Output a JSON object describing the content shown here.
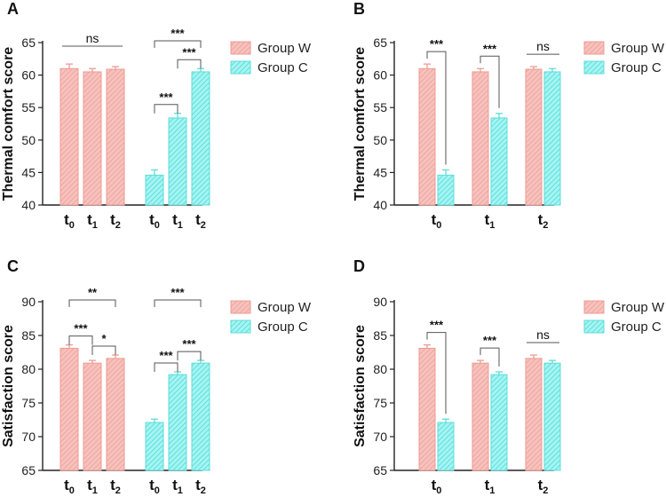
{
  "chart_data": [
    {
      "panel": "A",
      "type": "bar",
      "layout": "by-group",
      "ylabel": "Thermal comfort score",
      "ylim": [
        40,
        65
      ],
      "yticks": [
        40,
        45,
        50,
        55,
        60,
        65
      ],
      "categories": [
        "t0",
        "t1",
        "t2"
      ],
      "series": [
        {
          "name": "Group W",
          "values": [
            61.0,
            60.5,
            60.9
          ],
          "errors": [
            0.7,
            0.5,
            0.4
          ]
        },
        {
          "name": "Group C",
          "values": [
            44.6,
            53.4,
            60.5
          ],
          "errors": [
            0.8,
            0.7,
            0.5
          ]
        }
      ],
      "significance": [
        {
          "series": 0,
          "from": 0,
          "to": 2,
          "label": "ns"
        },
        {
          "series": 1,
          "from": 0,
          "to": 1,
          "label": "***"
        },
        {
          "series": 1,
          "from": 1,
          "to": 2,
          "label": "***"
        },
        {
          "series": 1,
          "from": 0,
          "to": 2,
          "label": "***"
        }
      ],
      "legend": "right"
    },
    {
      "panel": "B",
      "type": "bar",
      "layout": "by-time",
      "ylabel": "Thermal comfort score",
      "ylim": [
        40,
        65
      ],
      "yticks": [
        40,
        45,
        50,
        55,
        60,
        65
      ],
      "categories": [
        "t0",
        "t1",
        "t2"
      ],
      "series": [
        {
          "name": "Group W",
          "values": [
            61.0,
            60.5,
            60.9
          ],
          "errors": [
            0.7,
            0.5,
            0.4
          ]
        },
        {
          "name": "Group C",
          "values": [
            44.6,
            53.4,
            60.5
          ],
          "errors": [
            0.8,
            0.7,
            0.5
          ]
        }
      ],
      "significance": [
        {
          "category": 0,
          "label": "***"
        },
        {
          "category": 1,
          "label": "***"
        },
        {
          "category": 2,
          "label": "ns"
        }
      ],
      "legend": "right"
    },
    {
      "panel": "C",
      "type": "bar",
      "layout": "by-group",
      "ylabel": "Satisfaction score",
      "ylim": [
        65,
        90
      ],
      "yticks": [
        65,
        70,
        75,
        80,
        85,
        90
      ],
      "categories": [
        "t0",
        "t1",
        "t2"
      ],
      "series": [
        {
          "name": "Group W",
          "values": [
            83.1,
            80.9,
            81.6
          ],
          "errors": [
            0.5,
            0.4,
            0.5
          ]
        },
        {
          "name": "Group C",
          "values": [
            72.1,
            79.2,
            80.9
          ],
          "errors": [
            0.5,
            0.4,
            0.4
          ]
        }
      ],
      "significance": [
        {
          "series": 0,
          "from": 0,
          "to": 1,
          "label": "***"
        },
        {
          "series": 0,
          "from": 1,
          "to": 2,
          "label": "*"
        },
        {
          "series": 0,
          "from": 0,
          "to": 2,
          "label": "**"
        },
        {
          "series": 1,
          "from": 0,
          "to": 1,
          "label": "***"
        },
        {
          "series": 1,
          "from": 1,
          "to": 2,
          "label": "***"
        },
        {
          "series": 1,
          "from": 0,
          "to": 2,
          "label": "***"
        }
      ],
      "legend": "right"
    },
    {
      "panel": "D",
      "type": "bar",
      "layout": "by-time",
      "ylabel": "Satisfaction score",
      "ylim": [
        65,
        90
      ],
      "yticks": [
        65,
        70,
        75,
        80,
        85,
        90
      ],
      "categories": [
        "t0",
        "t1",
        "t2"
      ],
      "series": [
        {
          "name": "Group W",
          "values": [
            83.1,
            80.9,
            81.6
          ],
          "errors": [
            0.5,
            0.4,
            0.5
          ]
        },
        {
          "name": "Group C",
          "values": [
            72.1,
            79.2,
            80.9
          ],
          "errors": [
            0.5,
            0.4,
            0.4
          ]
        }
      ],
      "significance": [
        {
          "category": 0,
          "label": "***"
        },
        {
          "category": 1,
          "label": "***"
        },
        {
          "category": 2,
          "label": "ns"
        }
      ],
      "legend": "right"
    }
  ],
  "colors": {
    "group_w_fill": "#f4b3ad",
    "group_w_stroke": "#ec9b93",
    "group_c_fill": "#8ef0ee",
    "group_c_stroke": "#5fdcd8",
    "axis": "#222222",
    "bracket": "#555555"
  }
}
